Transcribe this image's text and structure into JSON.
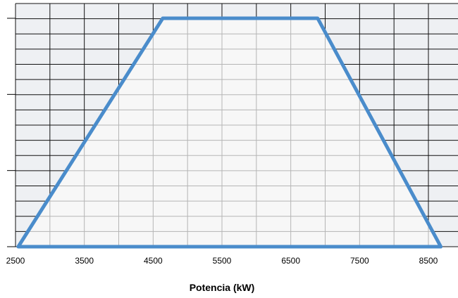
{
  "chart_data": {
    "type": "area",
    "xlabel": "Potencia (kW)",
    "ylabel": "",
    "x_ticks": [
      2500,
      3500,
      4500,
      5500,
      6500,
      7500,
      8500
    ],
    "xlim": [
      2500,
      8700
    ],
    "ylim": [
      0,
      1
    ],
    "series": [
      {
        "x": [
          2540,
          4640,
          6890,
          8680
        ],
        "y": [
          0,
          1,
          1,
          0
        ]
      }
    ],
    "grid": true,
    "legend": "none",
    "colors": {
      "line": "#4a8ccb",
      "area_fill": "#f7f7f7",
      "background_fill": "#eef0f3",
      "gridline_outside": "#111111",
      "gridline_inside": "#b5b5b5"
    }
  }
}
